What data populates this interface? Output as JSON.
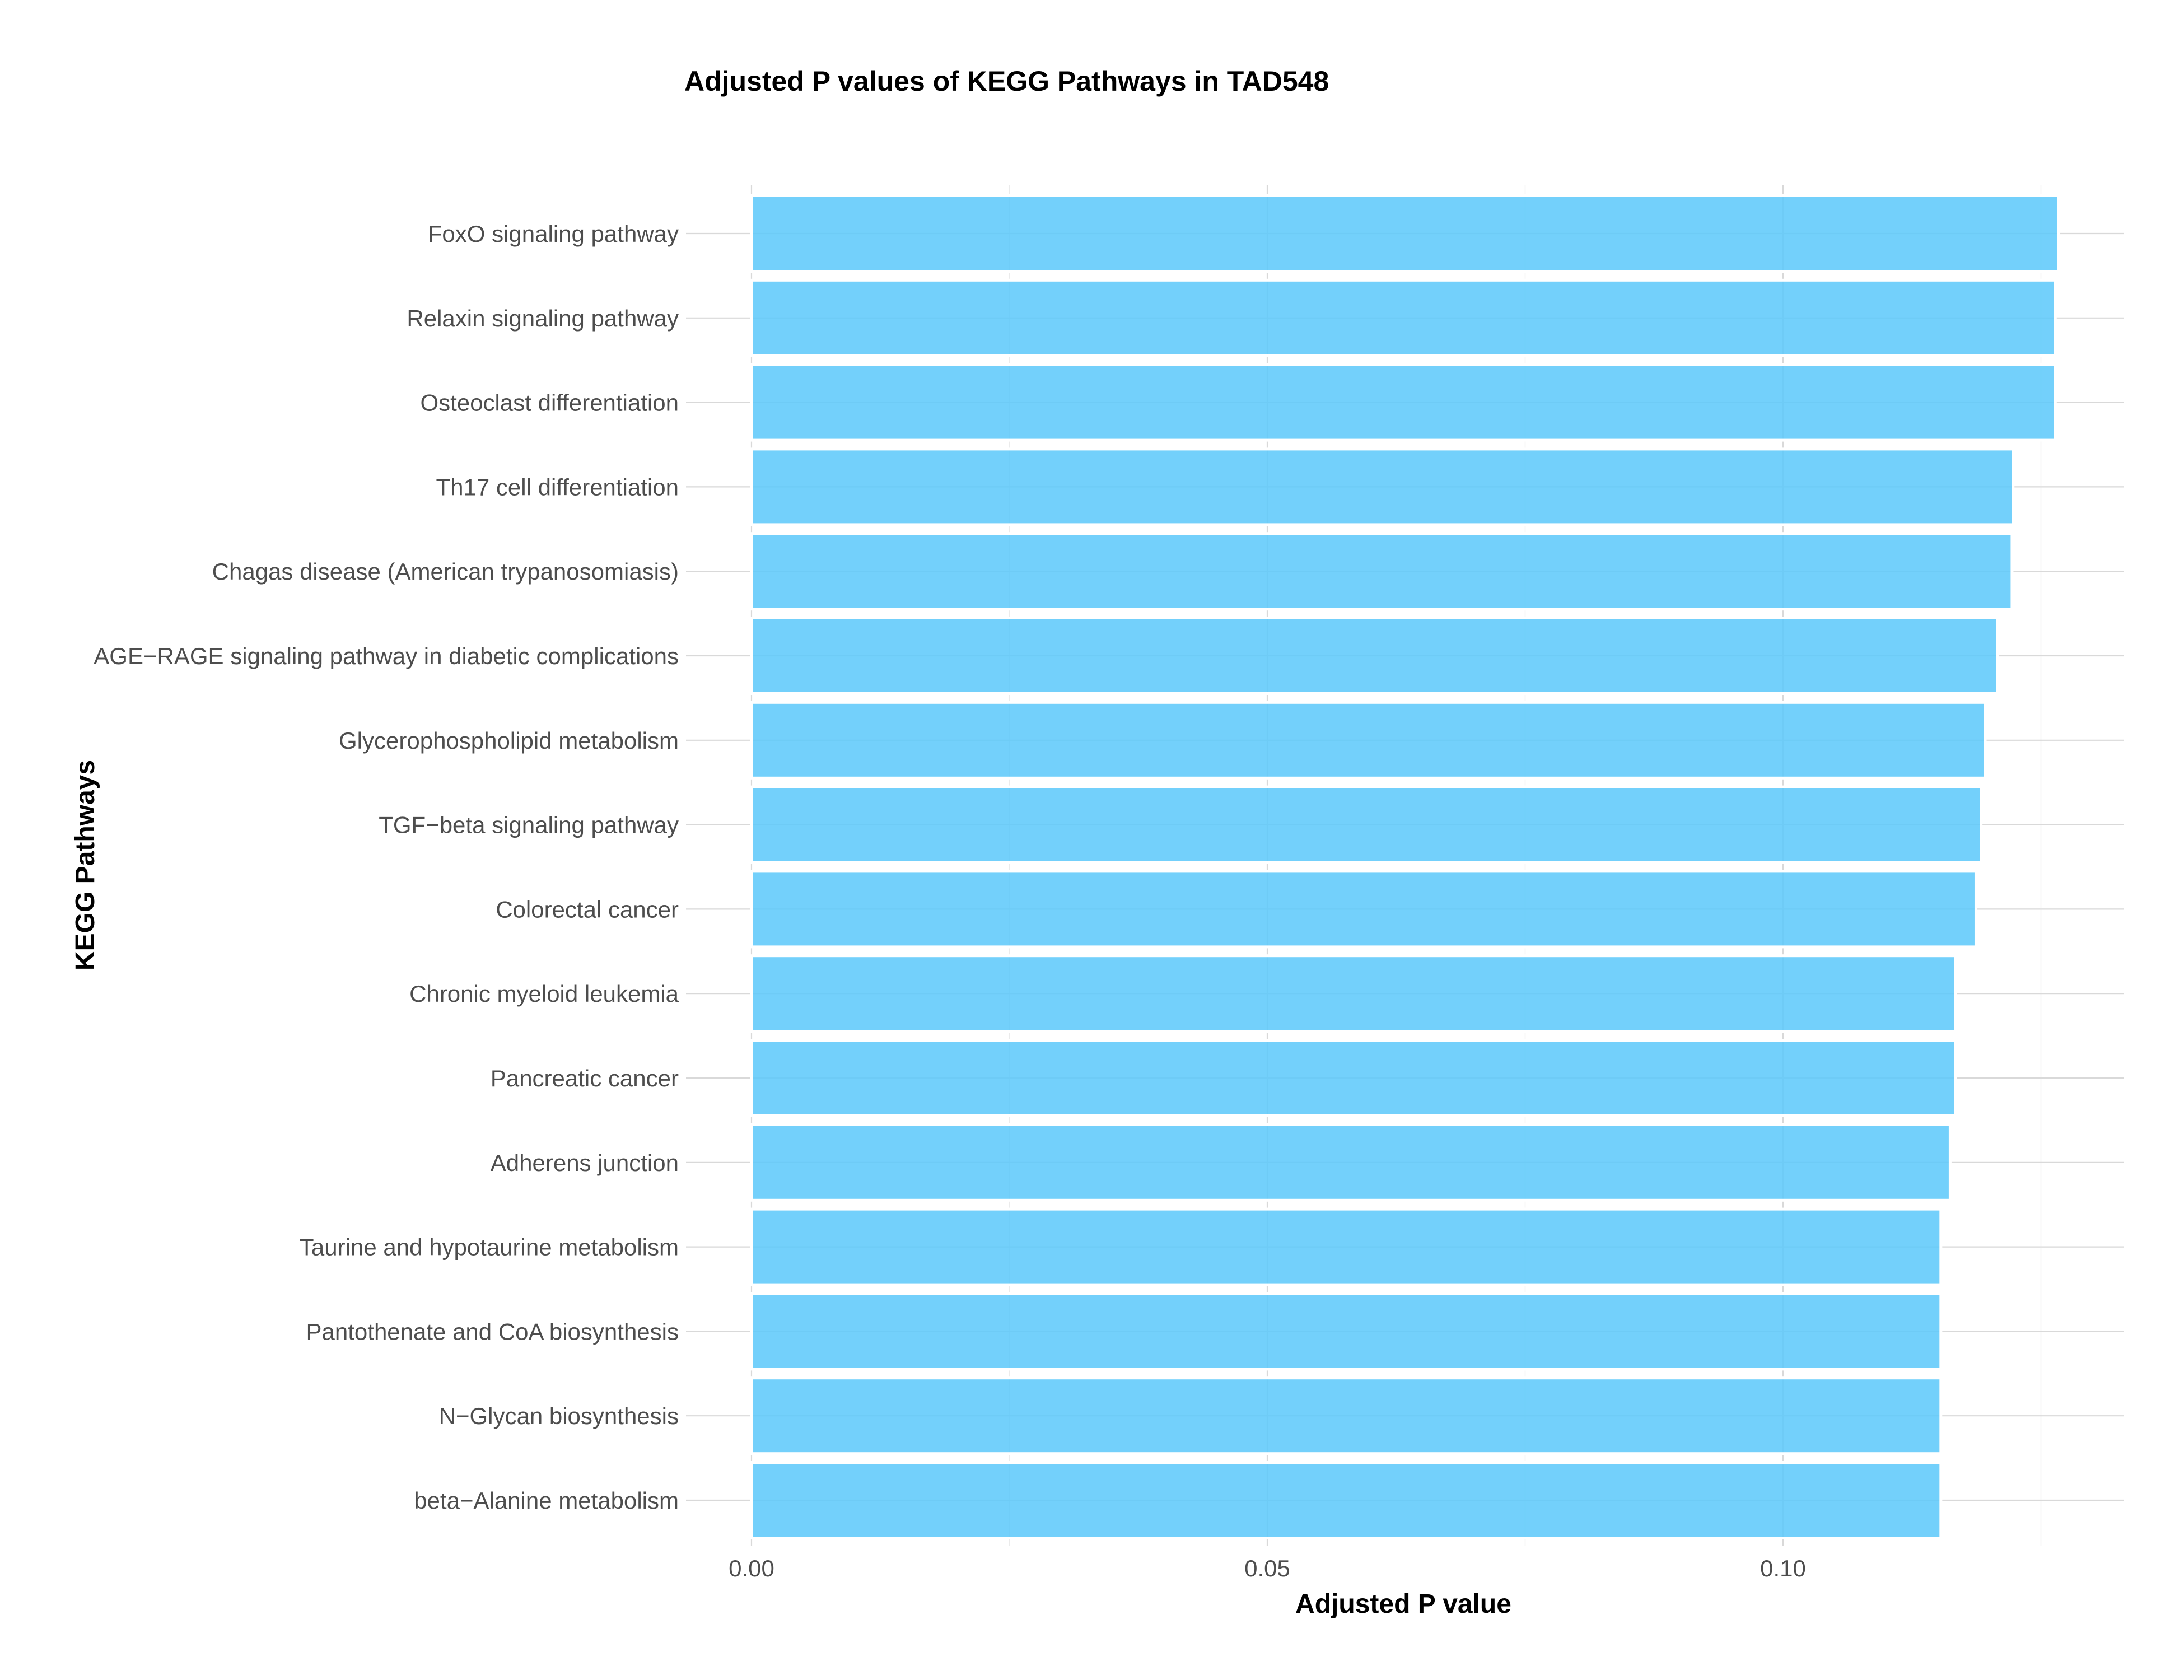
{
  "chart_data": {
    "type": "bar",
    "orientation": "horizontal",
    "title": "Adjusted P values of KEGG Pathways in TAD548",
    "xlabel": "Adjusted P value",
    "ylabel": "KEGG Pathways",
    "xlim": [
      0,
      0.1325
    ],
    "xticks": [
      0.0,
      0.05,
      0.1
    ],
    "xtick_labels": [
      "0.00",
      "0.05",
      "0.10"
    ],
    "grid": true,
    "bar_color": "#5BC8FA",
    "categories": [
      "FoxO signaling pathway",
      "Relaxin signaling pathway",
      "Osteoclast differentiation",
      "Th17 cell differentiation",
      "Chagas disease (American trypanosomiasis)",
      "AGE−RAGE signaling pathway in diabetic complications",
      "Glycerophospholipid metabolism",
      "TGF−beta signaling pathway",
      "Colorectal cancer",
      "Chronic myeloid leukemia",
      "Pancreatic cancer",
      "Adherens junction",
      "Taurine and hypotaurine metabolism",
      "Pantothenate and CoA biosynthesis",
      "N−Glycan biosynthesis",
      "beta−Alanine metabolism"
    ],
    "values": [
      0.1267,
      0.1264,
      0.1264,
      0.1223,
      0.1222,
      0.1208,
      0.1196,
      0.1192,
      0.1187,
      0.1167,
      0.1167,
      0.1162,
      0.1153,
      0.1153,
      0.1153,
      0.1153
    ]
  }
}
